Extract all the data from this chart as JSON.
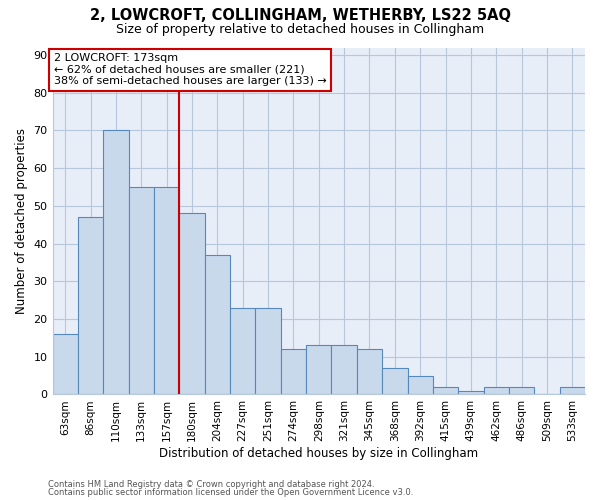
{
  "title": "2, LOWCROFT, COLLINGHAM, WETHERBY, LS22 5AQ",
  "subtitle": "Size of property relative to detached houses in Collingham",
  "xlabel": "Distribution of detached houses by size in Collingham",
  "ylabel": "Number of detached properties",
  "bin_labels": [
    "63sqm",
    "86sqm",
    "110sqm",
    "133sqm",
    "157sqm",
    "180sqm",
    "204sqm",
    "227sqm",
    "251sqm",
    "274sqm",
    "298sqm",
    "321sqm",
    "345sqm",
    "368sqm",
    "392sqm",
    "415sqm",
    "439sqm",
    "462sqm",
    "486sqm",
    "509sqm",
    "533sqm"
  ],
  "bar_values": [
    16,
    47,
    70,
    55,
    55,
    48,
    37,
    23,
    23,
    12,
    13,
    13,
    12,
    7,
    5,
    2,
    1,
    2,
    2,
    0,
    2
  ],
  "bar_color": "#c9d9ec",
  "bar_edge_color": "#5588bb",
  "red_line_x": 4.5,
  "annotation_title": "2 LOWCROFT: 173sqm",
  "annotation_line1": "← 62% of detached houses are smaller (221)",
  "annotation_line2": "38% of semi-detached houses are larger (133) →",
  "annotation_box_color": "#ffffff",
  "annotation_box_edge": "#cc0000",
  "ylim": [
    0,
    92
  ],
  "yticks": [
    0,
    10,
    20,
    30,
    40,
    50,
    60,
    70,
    80,
    90
  ],
  "grid_color": "#b8c8dc",
  "plot_bg_color": "#e8eef8",
  "fig_bg_color": "#ffffff",
  "footer1": "Contains HM Land Registry data © Crown copyright and database right 2024.",
  "footer2": "Contains public sector information licensed under the Open Government Licence v3.0."
}
